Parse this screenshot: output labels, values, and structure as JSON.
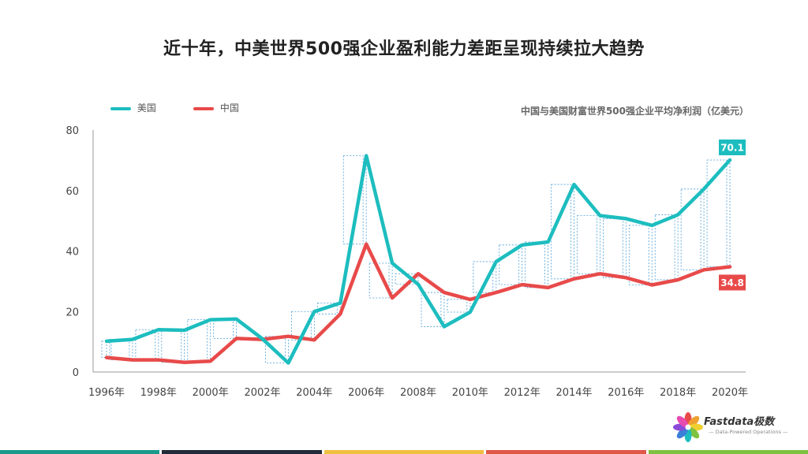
{
  "title": "近十年，中美世界500强企业盈利能力差距呈现持续拉大趋势",
  "subtitle": "中国与美国财富世界500强企业平均净利润（亿美元）",
  "logo": {
    "name": "Fastdata极数",
    "tagline": "— Data-Powered Operations —"
  },
  "colors": {
    "usa": "#1dbdbf",
    "china": "#e84a4a",
    "gap_lines": "#4a9fd8",
    "axis": "#999999",
    "bar_segments": [
      "#1a9a8a",
      "#222b3a",
      "#f0c040",
      "#e0584a",
      "#7fc241"
    ]
  },
  "chart_data": {
    "type": "line",
    "x": [
      1996,
      1997,
      1998,
      1999,
      2000,
      2001,
      2002,
      2003,
      2004,
      2005,
      2006,
      2007,
      2008,
      2009,
      2010,
      2011,
      2012,
      2013,
      2014,
      2015,
      2016,
      2017,
      2018,
      2019,
      2020
    ],
    "series": [
      {
        "name": "美国",
        "values": [
          10.2,
          10.8,
          14.0,
          13.8,
          17.3,
          17.5,
          11.0,
          3.0,
          20.0,
          22.8,
          71.5,
          36.0,
          29.0,
          15.0,
          19.8,
          36.5,
          42.0,
          43.0,
          62.0,
          51.7,
          50.7,
          48.5,
          52.0,
          60.5,
          70.1
        ]
      },
      {
        "name": "中国",
        "values": [
          4.8,
          4.0,
          4.0,
          3.2,
          3.6,
          11.1,
          10.8,
          11.8,
          10.6,
          19.2,
          42.3,
          24.5,
          32.5,
          26.3,
          24.0,
          26.3,
          28.9,
          27.9,
          30.8,
          32.5,
          31.2,
          28.8,
          30.5,
          33.8,
          34.8
        ]
      }
    ],
    "ylim": [
      0,
      80
    ],
    "y_ticks": [
      0,
      20,
      40,
      60,
      80
    ],
    "x_tick_labels": [
      "1996年",
      "1998年",
      "2000年",
      "2002年",
      "2004年",
      "2006年",
      "2008年",
      "2010年",
      "2012年",
      "2014年",
      "2016年",
      "2018年",
      "2020年"
    ],
    "end_labels": {
      "usa": "70.1",
      "china": "34.8"
    },
    "grid": false,
    "legend": "top-left"
  }
}
